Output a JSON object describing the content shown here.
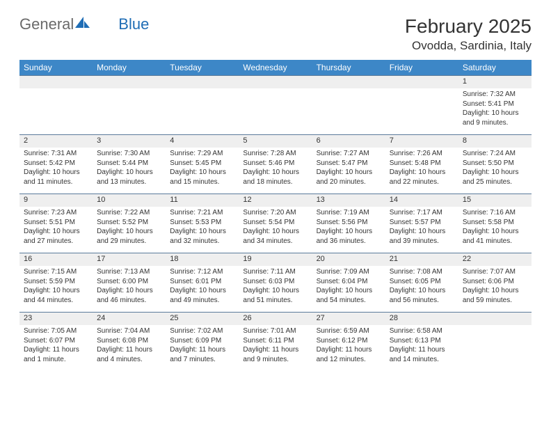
{
  "brand": {
    "name1": "General",
    "name2": "Blue"
  },
  "title": "February 2025",
  "location": "Ovodda, Sardinia, Italy",
  "colors": {
    "header_bg": "#3d87c7",
    "header_text": "#ffffff",
    "numrow_bg": "#efefef",
    "border": "#5a7a9a",
    "text": "#333333",
    "brand_gray": "#6a6a6a",
    "brand_blue": "#1f6db5"
  },
  "day_names": [
    "Sunday",
    "Monday",
    "Tuesday",
    "Wednesday",
    "Thursday",
    "Friday",
    "Saturday"
  ],
  "weeks": [
    {
      "nums": [
        "",
        "",
        "",
        "",
        "",
        "",
        "1"
      ],
      "cells": [
        "",
        "",
        "",
        "",
        "",
        "",
        "Sunrise: 7:32 AM\nSunset: 5:41 PM\nDaylight: 10 hours and 9 minutes."
      ]
    },
    {
      "nums": [
        "2",
        "3",
        "4",
        "5",
        "6",
        "7",
        "8"
      ],
      "cells": [
        "Sunrise: 7:31 AM\nSunset: 5:42 PM\nDaylight: 10 hours and 11 minutes.",
        "Sunrise: 7:30 AM\nSunset: 5:44 PM\nDaylight: 10 hours and 13 minutes.",
        "Sunrise: 7:29 AM\nSunset: 5:45 PM\nDaylight: 10 hours and 15 minutes.",
        "Sunrise: 7:28 AM\nSunset: 5:46 PM\nDaylight: 10 hours and 18 minutes.",
        "Sunrise: 7:27 AM\nSunset: 5:47 PM\nDaylight: 10 hours and 20 minutes.",
        "Sunrise: 7:26 AM\nSunset: 5:48 PM\nDaylight: 10 hours and 22 minutes.",
        "Sunrise: 7:24 AM\nSunset: 5:50 PM\nDaylight: 10 hours and 25 minutes."
      ]
    },
    {
      "nums": [
        "9",
        "10",
        "11",
        "12",
        "13",
        "14",
        "15"
      ],
      "cells": [
        "Sunrise: 7:23 AM\nSunset: 5:51 PM\nDaylight: 10 hours and 27 minutes.",
        "Sunrise: 7:22 AM\nSunset: 5:52 PM\nDaylight: 10 hours and 29 minutes.",
        "Sunrise: 7:21 AM\nSunset: 5:53 PM\nDaylight: 10 hours and 32 minutes.",
        "Sunrise: 7:20 AM\nSunset: 5:54 PM\nDaylight: 10 hours and 34 minutes.",
        "Sunrise: 7:19 AM\nSunset: 5:56 PM\nDaylight: 10 hours and 36 minutes.",
        "Sunrise: 7:17 AM\nSunset: 5:57 PM\nDaylight: 10 hours and 39 minutes.",
        "Sunrise: 7:16 AM\nSunset: 5:58 PM\nDaylight: 10 hours and 41 minutes."
      ]
    },
    {
      "nums": [
        "16",
        "17",
        "18",
        "19",
        "20",
        "21",
        "22"
      ],
      "cells": [
        "Sunrise: 7:15 AM\nSunset: 5:59 PM\nDaylight: 10 hours and 44 minutes.",
        "Sunrise: 7:13 AM\nSunset: 6:00 PM\nDaylight: 10 hours and 46 minutes.",
        "Sunrise: 7:12 AM\nSunset: 6:01 PM\nDaylight: 10 hours and 49 minutes.",
        "Sunrise: 7:11 AM\nSunset: 6:03 PM\nDaylight: 10 hours and 51 minutes.",
        "Sunrise: 7:09 AM\nSunset: 6:04 PM\nDaylight: 10 hours and 54 minutes.",
        "Sunrise: 7:08 AM\nSunset: 6:05 PM\nDaylight: 10 hours and 56 minutes.",
        "Sunrise: 7:07 AM\nSunset: 6:06 PM\nDaylight: 10 hours and 59 minutes."
      ]
    },
    {
      "nums": [
        "23",
        "24",
        "25",
        "26",
        "27",
        "28",
        ""
      ],
      "cells": [
        "Sunrise: 7:05 AM\nSunset: 6:07 PM\nDaylight: 11 hours and 1 minute.",
        "Sunrise: 7:04 AM\nSunset: 6:08 PM\nDaylight: 11 hours and 4 minutes.",
        "Sunrise: 7:02 AM\nSunset: 6:09 PM\nDaylight: 11 hours and 7 minutes.",
        "Sunrise: 7:01 AM\nSunset: 6:11 PM\nDaylight: 11 hours and 9 minutes.",
        "Sunrise: 6:59 AM\nSunset: 6:12 PM\nDaylight: 11 hours and 12 minutes.",
        "Sunrise: 6:58 AM\nSunset: 6:13 PM\nDaylight: 11 hours and 14 minutes.",
        ""
      ]
    }
  ]
}
